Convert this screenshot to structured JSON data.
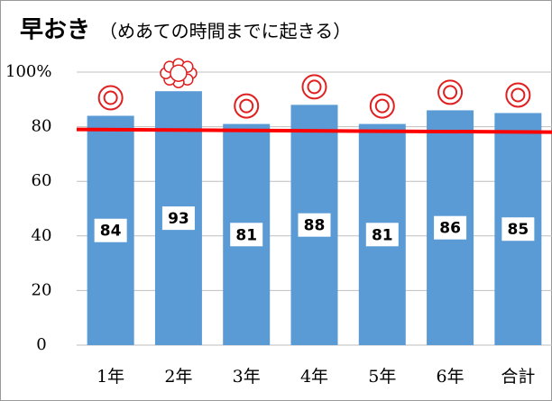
{
  "chart_data": {
    "type": "bar",
    "title": "早おき",
    "subtitle": "（めあての時間までに起きる）",
    "categories": [
      "1年",
      "2年",
      "3年",
      "4年",
      "5年",
      "6年",
      "合計"
    ],
    "values": [
      84,
      93,
      81,
      88,
      81,
      86,
      85
    ],
    "color": "#5b9bd5",
    "ylim": [
      0,
      100
    ],
    "yticks": [
      0,
      20,
      40,
      60,
      80,
      {
        "value": 100,
        "label": "100%"
      }
    ],
    "grid": true,
    "reference_line": {
      "color": "#ff0000",
      "values": [
        79,
        78
      ]
    }
  }
}
